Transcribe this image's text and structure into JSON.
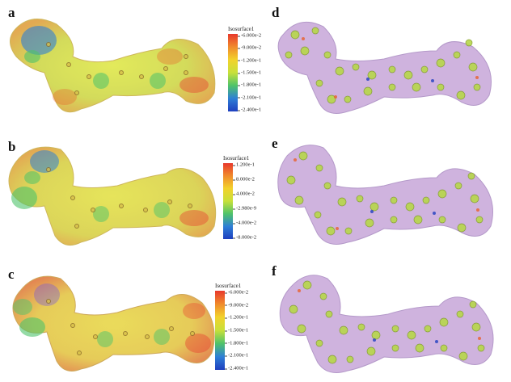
{
  "panels": [
    {
      "letter": "a",
      "type": "esp",
      "scale_title": "Isosurface1",
      "ticks": [
        "-6.000e-2",
        "-9.000e-2",
        "-1.200e-1",
        "-1.500e-1",
        "-1.800e-1",
        "-2.100e-1",
        "-2.400e-1"
      ]
    },
    {
      "letter": "b",
      "type": "esp",
      "scale_title": "Isosurface1",
      "ticks": [
        "1.200e-1",
        "8.000e-2",
        "4.000e-2",
        "-2.980e-9",
        "-4.000e-2",
        "-8.000e-2"
      ]
    },
    {
      "letter": "c",
      "type": "esp",
      "scale_title": "Isosurface1",
      "ticks": [
        "-6.000e-2",
        "-9.000e-2",
        "-1.200e-1",
        "-1.500e-1",
        "-1.800e-1",
        "-2.100e-1",
        "-2.400e-1"
      ]
    },
    {
      "letter": "d",
      "type": "density"
    },
    {
      "letter": "e",
      "type": "density"
    },
    {
      "letter": "f",
      "type": "density"
    }
  ],
  "colors": {
    "scale": [
      "#e8382c",
      "#f08a2c",
      "#f2d22c",
      "#c8e03a",
      "#4fc36a",
      "#2e7fd6",
      "#1f3fbf"
    ],
    "surface_main": "#c9d94c",
    "density_purple": "#c7a6d9",
    "density_green": "#b7d74a"
  }
}
